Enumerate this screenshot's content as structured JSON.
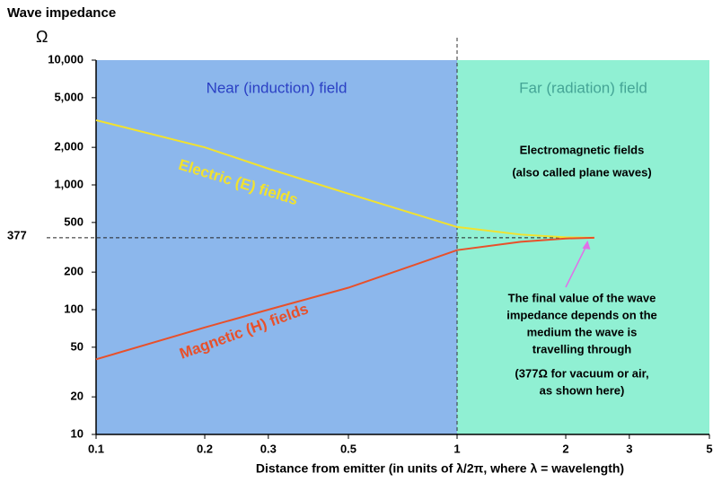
{
  "chart_data": {
    "type": "line",
    "title": "Wave impedance",
    "y_unit": "Ω",
    "xlabel": "Distance from emitter  (in units of λ/2π, where λ = wavelength)",
    "log_x": true,
    "log_y": true,
    "xlim": [
      0.1,
      5
    ],
    "ylim": [
      10,
      10000
    ],
    "xticks": [
      0.1,
      0.2,
      0.3,
      0.5,
      1,
      2,
      3,
      5
    ],
    "yticks": [
      10,
      20,
      50,
      100,
      200,
      500,
      {
        "value": 1000,
        "label": "1,000"
      },
      {
        "value": 2000,
        "label": "2,000"
      },
      {
        "value": 5000,
        "label": "5,000"
      },
      {
        "value": 10000,
        "label": "10,000"
      }
    ],
    "reference_line": {
      "value": 377,
      "label": "377"
    },
    "regions": [
      {
        "name": "Near (induction) field",
        "from": 0.1,
        "to": 1,
        "color": "#8cb7ec",
        "text_color": "#2b40c4"
      },
      {
        "name": "Far (radiation) field",
        "from": 1,
        "to": 5,
        "color": "#90f0d3",
        "text_color": "#45a596"
      }
    ],
    "x": [
      0.1,
      0.2,
      0.3,
      0.5,
      1,
      1.5,
      2,
      2.4
    ],
    "series": [
      {
        "name": "Electric (E) fields",
        "color": "#f2e22e",
        "values": [
          3300,
          2000,
          1350,
          850,
          460,
          400,
          380,
          377
        ]
      },
      {
        "name": "Magnetic (H) fields",
        "color": "#e8502a",
        "values": [
          40,
          72,
          100,
          150,
          300,
          350,
          372,
          377
        ]
      }
    ],
    "annotations": [
      {
        "lines": [
          "Electromagnetic fields",
          "(also called plane waves)"
        ]
      },
      {
        "lines": [
          "The final value of the wave",
          "impedance depends on the",
          "medium the wave is",
          "travelling through",
          "(377Ω for vacuum or air,",
          "as shown here)"
        ],
        "arrow_to": [
          2.3,
          377
        ],
        "arrow_color": "#e070e8"
      }
    ]
  }
}
